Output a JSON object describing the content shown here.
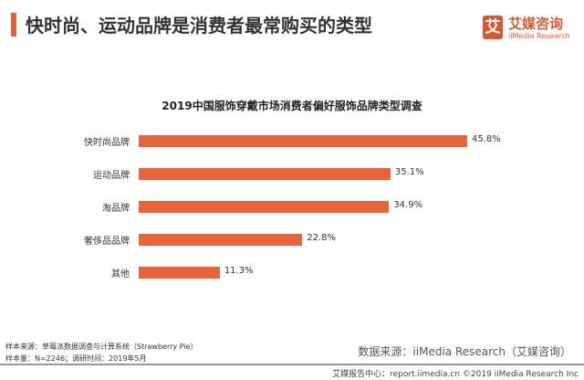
{
  "header": {
    "title": "快时尚、运动品牌是消费者最常购买的类型",
    "accent_color": "#e0603a"
  },
  "logo": {
    "mark": "艾",
    "cn": "艾媒咨询",
    "en": "iiMedia Research"
  },
  "chart_data": {
    "type": "bar",
    "orientation": "horizontal",
    "title": "2019中国服饰穿戴市场消费者偏好服饰品牌类型调查",
    "categories": [
      "快时尚品牌",
      "运动品牌",
      "淘品牌",
      "奢侈品品牌",
      "其他"
    ],
    "values": [
      45.8,
      35.1,
      34.9,
      22.8,
      11.3
    ],
    "labels": [
      "45.8%",
      "35.1%",
      "34.9%",
      "22.8%",
      "11.3%"
    ],
    "unit": "%",
    "xlim": [
      0,
      50
    ],
    "grid": false,
    "bar_color": "#e8643c"
  },
  "footer": {
    "sample_source": "样本来源：草莓派数据调查与计算系统（Strawberry  Pie）",
    "sample_info": "样本量：N=2246；调研时间：2019年5月",
    "data_source": "数据来源：iiMedia Research（艾媒咨询）",
    "copyright": "艾媒报告中心：report.iimedia.cn  ©2019  iiMedia Research Inc"
  }
}
